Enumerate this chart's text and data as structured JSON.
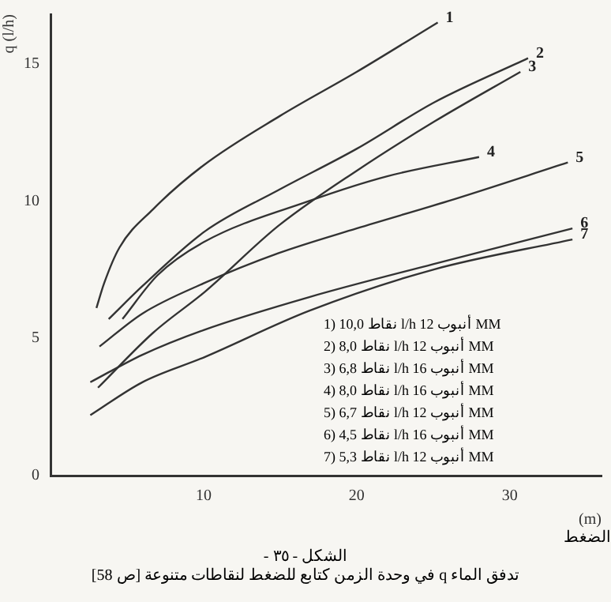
{
  "chart_data": {
    "type": "line",
    "xlabel": "(m)",
    "ylabel": "q (l/h)",
    "xlim": [
      0,
      36
    ],
    "xticks": [
      10,
      20,
      30
    ],
    "ylim": [
      0,
      16.8
    ],
    "yticks": [
      0,
      5,
      10,
      15
    ],
    "grid": false,
    "legend": false,
    "marker": "none",
    "line_style": "solid",
    "series": [
      {
        "color": "#333333",
        "x": [
          3,
          3.5,
          4.5,
          6.7,
          10,
          15,
          20,
          25.3
        ],
        "values": [
          6.1,
          7,
          8.3,
          9.7,
          11.3,
          13.1,
          14.7,
          16.5
        ]
      },
      {
        "color": "#333333",
        "x": [
          3.8,
          6,
          10.1,
          14.9,
          20,
          25.1,
          31.2
        ],
        "values": [
          5.7,
          6.9,
          8.9,
          10.4,
          11.9,
          13.6,
          15.2
        ]
      },
      {
        "color": "#333333",
        "x": [
          3.1,
          6.7,
          10.1,
          14.9,
          20,
          25.1,
          30.7
        ],
        "values": [
          3.2,
          5.2,
          6.7,
          9.1,
          11.1,
          12.9,
          14.7
        ]
      },
      {
        "color": "#333333",
        "x": [
          4.7,
          7,
          10,
          16.9,
          22,
          28
        ],
        "values": [
          5.7,
          7.3,
          8.5,
          10,
          10.9,
          11.6
        ]
      },
      {
        "color": "#333333",
        "x": [
          3.2,
          6,
          10,
          14.9,
          20,
          26,
          33.8
        ],
        "values": [
          4.7,
          5.9,
          7,
          8.1,
          9,
          10,
          11.4
        ]
      },
      {
        "color": "#333333",
        "x": [
          2.6,
          6,
          10,
          16.9,
          25,
          34.1
        ],
        "values": [
          3.4,
          4.4,
          5.3,
          6.5,
          7.7,
          9
        ]
      },
      {
        "color": "#333333",
        "x": [
          2.6,
          6,
          10,
          16.9,
          25,
          34.1
        ],
        "values": [
          2.2,
          3.4,
          4.3,
          6,
          7.5,
          8.6
        ]
      }
    ],
    "annotations": [
      {
        "text": "1",
        "x": 25.3,
        "y": 16.5
      },
      {
        "text": "2",
        "x": 31.2,
        "y": 15.2
      },
      {
        "text": "3",
        "x": 30.7,
        "y": 14.7
      },
      {
        "text": "4",
        "x": 28,
        "y": 11.6
      },
      {
        "text": "5",
        "x": 33.8,
        "y": 11.4
      },
      {
        "text": "6",
        "x": 34.1,
        "y": 9
      },
      {
        "text": "7",
        "x": 34.1,
        "y": 8.6
      },
      "1) نقاط 10,0 l/h أنبوب 12 MM",
      "2) نقاط 8,0 l/h أنبوب 12 MM",
      "3) نقاط 6,8 l/h أنبوب 16 MM",
      "4) نقاط 8,0 l/h أنبوب 16 MM",
      "5) نقاط 6,7 l/h أنبوب 12 MM",
      "6) نقاط 4,5 l/h أنبوب 16 MM",
      "7) نقاط 5,3 l/h أنبوب 12 MM",
      "الضغط",
      "الشكل - ٣٥ -",
      "تدفق الماء q في وحدة الزمن كتابع للضغط لنقاطات متنوعة [ص 58]"
    ]
  }
}
